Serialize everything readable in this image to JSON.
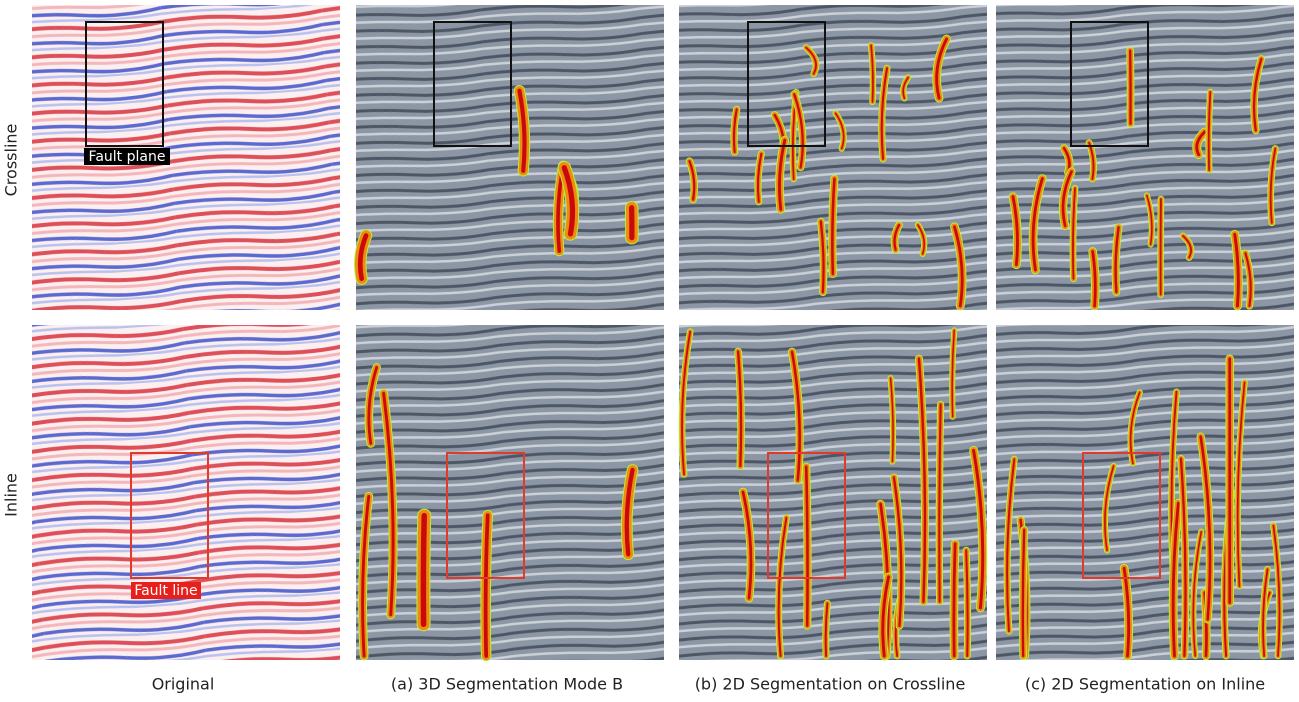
{
  "row_labels": [
    "Crossline",
    "Inline"
  ],
  "column_captions": [
    "Original",
    "(a) 3D Segmentation Mode B",
    "(b) 2D Segmentation on Crossline",
    "(c) 2D Segmentation on Inline"
  ],
  "annotations": {
    "fault_plane": "Fault plane",
    "fault_line": "Fault line"
  }
}
